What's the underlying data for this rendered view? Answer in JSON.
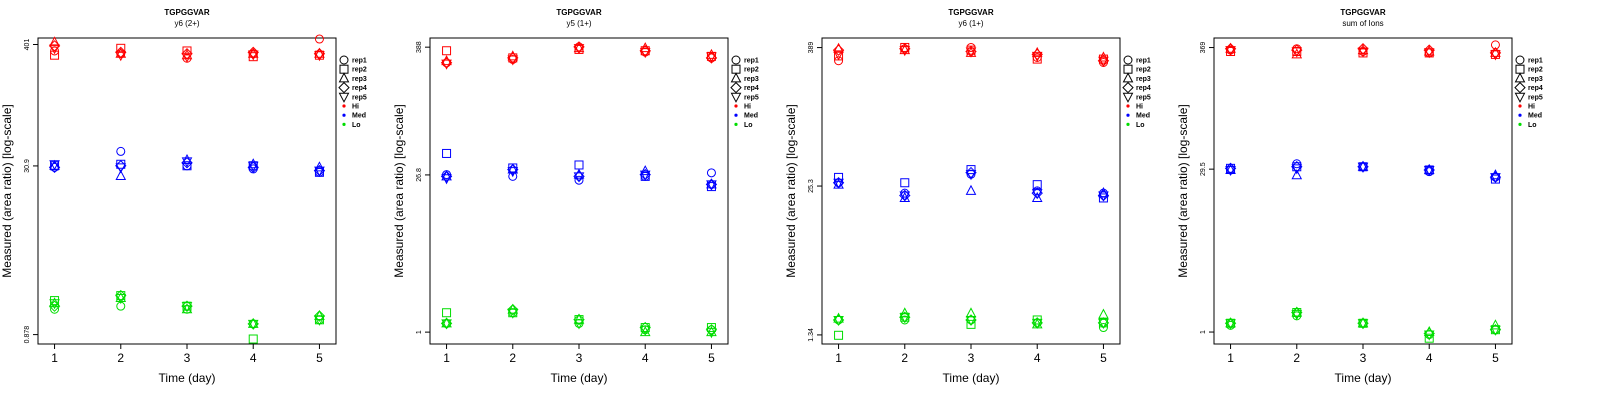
{
  "colors": {
    "Hi": "#ff0000",
    "Med": "#0000ff",
    "Lo": "#00dd00",
    "axis": "#000000"
  },
  "legend": {
    "reps": [
      {
        "label": "rep1",
        "shape": "circle"
      },
      {
        "label": "rep2",
        "shape": "square"
      },
      {
        "label": "rep3",
        "shape": "triangle-up"
      },
      {
        "label": "rep4",
        "shape": "diamond"
      },
      {
        "label": "rep5",
        "shape": "triangle-down"
      }
    ],
    "levels": [
      {
        "label": "Hi",
        "color": "#ff0000"
      },
      {
        "label": "Med",
        "color": "#0000ff"
      },
      {
        "label": "Lo",
        "color": "#00dd00"
      }
    ]
  },
  "chart_data": [
    {
      "type": "scatter",
      "title": "TGPGGVAR",
      "subtitle": "y6 (2+)",
      "xlabel": "Time (day)",
      "ylabel": "Measured (area ratio) [log-scale]",
      "log_y": true,
      "x_ticks": [
        1,
        2,
        3,
        4,
        5
      ],
      "y_ticks": [
        0.878,
        30.9,
        401
      ],
      "y_tick_labels": [
        "0.878",
        "30.9",
        "401"
      ],
      "xlim": [
        0.75,
        5.25
      ],
      "ylim": [
        0.72,
        460
      ],
      "series": [
        {
          "name": "Hi",
          "points": [
            {
              "rep": "rep1",
              "values": [
                350,
                330,
                300,
                330,
                450
              ]
            },
            {
              "rep": "rep2",
              "values": [
                320,
                370,
                350,
                310,
                320
              ]
            },
            {
              "rep": "rep3",
              "values": [
                420,
                330,
                320,
                330,
                330
              ]
            },
            {
              "rep": "rep4",
              "values": [
                390,
                340,
                330,
                340,
                330
              ]
            },
            {
              "rep": "rep5",
              "values": [
                370,
                320,
                310,
                325,
                320
              ]
            }
          ]
        },
        {
          "name": "Med",
          "points": [
            {
              "rep": "rep1",
              "values": [
                30,
                42,
                31,
                29,
                27
              ]
            },
            {
              "rep": "rep2",
              "values": [
                31,
                32,
                31,
                31,
                27
              ]
            },
            {
              "rep": "rep3",
              "values": [
                31,
                25,
                35,
                32,
                30
              ]
            },
            {
              "rep": "rep4",
              "values": [
                30,
                31,
                33,
                30,
                28
              ]
            },
            {
              "rep": "rep5",
              "values": [
                32,
                30,
                34,
                31,
                28
              ]
            }
          ]
        },
        {
          "name": "Lo",
          "points": [
            {
              "rep": "rep1",
              "values": [
                1.5,
                1.6,
                1.5,
                1.1,
                1.2
              ]
            },
            {
              "rep": "rep2",
              "values": [
                1.8,
                2.0,
                1.6,
                0.8,
                1.2
              ]
            },
            {
              "rep": "rep3",
              "values": [
                1.7,
                1.9,
                1.5,
                1.1,
                1.3
              ]
            },
            {
              "rep": "rep4",
              "values": [
                1.6,
                2.0,
                1.6,
                1.1,
                1.3
              ]
            },
            {
              "rep": "rep5",
              "values": [
                1.7,
                1.9,
                1.6,
                1.1,
                1.2
              ]
            }
          ]
        }
      ]
    },
    {
      "type": "scatter",
      "title": "TGPGGVAR",
      "subtitle": "y5 (1+)",
      "xlabel": "Time (day)",
      "ylabel": "Measured (area ratio) [log-scale]",
      "log_y": true,
      "x_ticks": [
        1,
        2,
        3,
        4,
        5
      ],
      "y_ticks": [
        1,
        26.8,
        388
      ],
      "y_tick_labels": [
        "1",
        "26.8",
        "388"
      ],
      "xlim": [
        0.75,
        5.25
      ],
      "ylim": [
        0.78,
        470
      ],
      "series": [
        {
          "name": "Hi",
          "points": [
            {
              "rep": "rep1",
              "values": [
                280,
                300,
                390,
                350,
                310
              ]
            },
            {
              "rep": "rep2",
              "values": [
                360,
                310,
                370,
                360,
                320
              ]
            },
            {
              "rep": "rep3",
              "values": [
                290,
                320,
                380,
                380,
                330
              ]
            },
            {
              "rep": "rep4",
              "values": [
                280,
                310,
                390,
                360,
                310
              ]
            },
            {
              "rep": "rep5",
              "values": [
                275,
                300,
                380,
                350,
                320
              ]
            }
          ]
        },
        {
          "name": "Med",
          "points": [
            {
              "rep": "rep1",
              "values": [
                27,
                26,
                24,
                26,
                28
              ]
            },
            {
              "rep": "rep2",
              "values": [
                42,
                31,
                33,
                26,
                21
              ]
            },
            {
              "rep": "rep3",
              "values": [
                26,
                30,
                27,
                29,
                22
              ]
            },
            {
              "rep": "rep4",
              "values": [
                26,
                30,
                26,
                27,
                22
              ]
            },
            {
              "rep": "rep5",
              "values": [
                25,
                29,
                26,
                27,
                22
              ]
            }
          ]
        },
        {
          "name": "Lo",
          "points": [
            {
              "rep": "rep1",
              "values": [
                1.2,
                1.5,
                1.2,
                1.05,
                1.05
              ]
            },
            {
              "rep": "rep2",
              "values": [
                1.5,
                1.5,
                1.3,
                1.1,
                1.1
              ]
            },
            {
              "rep": "rep3",
              "values": [
                1.2,
                1.6,
                1.3,
                1.0,
                1.0
              ]
            },
            {
              "rep": "rep4",
              "values": [
                1.2,
                1.6,
                1.3,
                1.1,
                1.05
              ]
            },
            {
              "rep": "rep5",
              "values": [
                1.2,
                1.5,
                1.2,
                1.05,
                1.0
              ]
            }
          ]
        }
      ]
    },
    {
      "type": "scatter",
      "title": "TGPGGVAR",
      "subtitle": "y6 (1+)",
      "xlabel": "Time (day)",
      "ylabel": "Measured (area ratio) [log-scale]",
      "log_y": true,
      "x_ticks": [
        1,
        2,
        3,
        4,
        5
      ],
      "y_ticks": [
        1.34,
        25.3,
        389
      ],
      "y_tick_labels": [
        "1.34",
        "25.3",
        "389"
      ],
      "xlim": [
        0.75,
        5.25
      ],
      "ylim": [
        1.12,
        470
      ],
      "series": [
        {
          "name": "Hi",
          "points": [
            {
              "rep": "rep1",
              "values": [
                300,
                380,
                390,
                320,
                290
              ]
            },
            {
              "rep": "rep2",
              "values": [
                330,
                390,
                370,
                310,
                310
              ]
            },
            {
              "rep": "rep3",
              "values": [
                380,
                370,
                350,
                350,
                320
              ]
            },
            {
              "rep": "rep4",
              "values": [
                370,
                380,
                360,
                340,
                300
              ]
            },
            {
              "rep": "rep5",
              "values": [
                340,
                370,
                360,
                330,
                300
              ]
            }
          ]
        },
        {
          "name": "Med",
          "points": [
            {
              "rep": "rep1",
              "values": [
                27,
                22,
                32,
                23,
                22
              ]
            },
            {
              "rep": "rep2",
              "values": [
                30,
                27,
                35,
                26,
                20
              ]
            },
            {
              "rep": "rep3",
              "values": [
                26,
                20,
                23,
                20,
                22
              ]
            },
            {
              "rep": "rep4",
              "values": [
                27,
                21,
                33,
                22,
                21
              ]
            },
            {
              "rep": "rep5",
              "values": [
                27,
                21,
                32,
                22,
                21
              ]
            }
          ]
        },
        {
          "name": "Lo",
          "points": [
            {
              "rep": "rep1",
              "values": [
                1.8,
                1.8,
                1.8,
                1.7,
                1.55
              ]
            },
            {
              "rep": "rep2",
              "values": [
                1.33,
                1.9,
                1.65,
                1.8,
                1.7
              ]
            },
            {
              "rep": "rep3",
              "values": [
                1.85,
                2.05,
                2.05,
                1.65,
                2.0
              ]
            },
            {
              "rep": "rep4",
              "values": [
                1.8,
                1.9,
                1.8,
                1.7,
                1.7
              ]
            },
            {
              "rep": "rep5",
              "values": [
                1.8,
                1.9,
                1.8,
                1.7,
                1.7
              ]
            }
          ]
        }
      ]
    },
    {
      "type": "scatter",
      "title": "TGPGGVAR",
      "subtitle": "sum of Ions",
      "xlabel": "Time (day)",
      "ylabel": "Measured (area ratio) [log-scale]",
      "log_y": true,
      "x_ticks": [
        1,
        2,
        3,
        4,
        5
      ],
      "y_ticks": [
        1,
        29.5,
        369
      ],
      "y_tick_labels": [
        "1",
        "29.5",
        "369"
      ],
      "xlim": [
        0.75,
        5.25
      ],
      "ylim": [
        0.78,
        450
      ],
      "series": [
        {
          "name": "Hi",
          "points": [
            {
              "rep": "rep1",
              "values": [
                350,
                360,
                340,
                330,
                390
              ]
            },
            {
              "rep": "rep2",
              "values": [
                340,
                340,
                330,
                330,
                320
              ]
            },
            {
              "rep": "rep3",
              "values": [
                360,
                320,
                350,
                340,
                330
              ]
            },
            {
              "rep": "rep4",
              "values": [
                360,
                350,
                360,
                350,
                330
              ]
            },
            {
              "rep": "rep5",
              "values": [
                350,
                340,
                340,
                335,
                320
              ]
            }
          ]
        },
        {
          "name": "Med",
          "points": [
            {
              "rep": "rep1",
              "values": [
                29,
                33,
                31,
                28,
                25
              ]
            },
            {
              "rep": "rep2",
              "values": [
                30,
                31,
                31,
                29,
                24
              ]
            },
            {
              "rep": "rep3",
              "values": [
                29,
                26,
                31,
                29,
                26
              ]
            },
            {
              "rep": "rep4",
              "values": [
                30,
                31,
                31,
                29,
                25
              ]
            },
            {
              "rep": "rep5",
              "values": [
                29,
                30,
                31,
                29,
                25
              ]
            }
          ]
        },
        {
          "name": "Lo",
          "points": [
            {
              "rep": "rep1",
              "values": [
                1.15,
                1.4,
                1.2,
                0.95,
                1.05
              ]
            },
            {
              "rep": "rep2",
              "values": [
                1.2,
                1.5,
                1.2,
                0.88,
                1.05
              ]
            },
            {
              "rep": "rep3",
              "values": [
                1.2,
                1.5,
                1.2,
                1.0,
                1.15
              ]
            },
            {
              "rep": "rep4",
              "values": [
                1.2,
                1.5,
                1.2,
                0.97,
                1.05
              ]
            },
            {
              "rep": "rep5",
              "values": [
                1.2,
                1.45,
                1.2,
                0.95,
                1.05
              ]
            }
          ]
        }
      ]
    }
  ]
}
